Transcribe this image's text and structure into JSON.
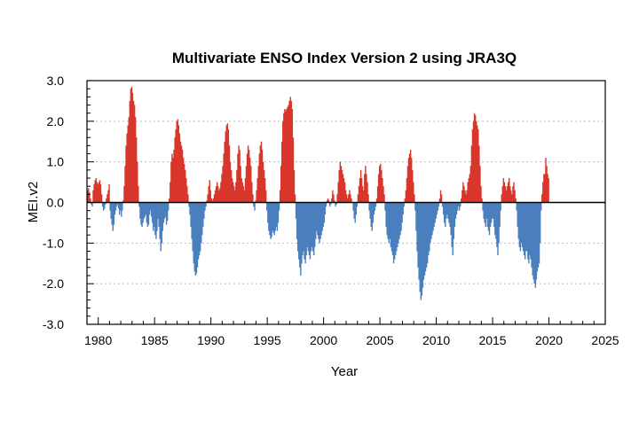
{
  "chart_data": {
    "type": "bar",
    "title": "Multivariate ENSO Index Version 2 using JRA3Q",
    "xlabel": "Year",
    "ylabel": "MEI.v2",
    "xlim": [
      1979,
      2025
    ],
    "ylim": [
      -3.0,
      3.0
    ],
    "x_ticks": [
      1980,
      1985,
      1990,
      1995,
      2000,
      2005,
      2010,
      2015,
      2020,
      2025
    ],
    "x_tick_labels": [
      "1980",
      "1985",
      "1990",
      "1995",
      "2000",
      "2005",
      "2010",
      "2015",
      "2020",
      "2025"
    ],
    "y_ticks": [
      -3.0,
      -2.0,
      -1.0,
      0.0,
      1.0,
      2.0,
      3.0
    ],
    "y_tick_labels": [
      "-3.0",
      "-2.0",
      "-1.0",
      "0.0",
      "1.0",
      "2.0",
      "3.0"
    ],
    "grid": "horizontal dotted",
    "colors": {
      "positive": "#d8362a",
      "negative": "#4a7fbe",
      "zero_line": "#000000",
      "grid": "#bbbbbb"
    },
    "x_start": 1979.0,
    "x_step": 0.08333,
    "values": [
      0.3,
      0.35,
      0.25,
      0.1,
      -0.05,
      -0.1,
      0.3,
      0.45,
      0.55,
      0.6,
      0.5,
      0.45,
      0.5,
      0.55,
      0.45,
      0.2,
      -0.1,
      -0.2,
      -0.15,
      -0.05,
      0.1,
      0.2,
      0.3,
      0.45,
      -0.2,
      -0.4,
      -0.55,
      -0.7,
      -0.55,
      -0.3,
      -0.2,
      -0.1,
      -0.05,
      -0.15,
      -0.3,
      -0.2,
      -0.35,
      -0.2,
      0.05,
      0.4,
      0.9,
      1.4,
      1.7,
      1.9,
      2.1,
      2.5,
      2.8,
      2.85,
      2.7,
      2.5,
      2.4,
      2.1,
      1.6,
      1.0,
      0.4,
      -0.1,
      -0.4,
      -0.55,
      -0.6,
      -0.5,
      -0.4,
      -0.35,
      -0.3,
      -0.5,
      -0.6,
      -0.55,
      -0.3,
      -0.2,
      -0.35,
      -0.5,
      -0.7,
      -0.6,
      -0.8,
      -0.9,
      -0.7,
      -0.4,
      -0.6,
      -0.9,
      -1.2,
      -1.0,
      -0.7,
      -0.5,
      -0.4,
      -0.35,
      -0.55,
      -0.45,
      -0.2,
      0.1,
      0.5,
      1.0,
      1.2,
      1.1,
      1.3,
      1.6,
      1.8,
      2.0,
      2.05,
      1.9,
      1.7,
      1.5,
      1.4,
      1.3,
      1.1,
      0.95,
      0.8,
      0.6,
      0.4,
      0.2,
      -0.1,
      -0.3,
      -0.6,
      -0.9,
      -1.2,
      -1.5,
      -1.7,
      -1.8,
      -1.75,
      -1.6,
      -1.4,
      -1.3,
      -1.2,
      -1.0,
      -0.8,
      -0.6,
      -0.4,
      -0.2,
      -0.1,
      0.05,
      0.2,
      0.4,
      0.55,
      0.3,
      0.1,
      0.05,
      0.1,
      0.2,
      0.3,
      0.4,
      0.5,
      0.4,
      0.3,
      0.35,
      0.5,
      0.7,
      0.9,
      1.2,
      1.5,
      1.75,
      1.9,
      1.95,
      1.8,
      1.4,
      1.0,
      0.8,
      0.6,
      0.5,
      0.4,
      0.3,
      0.5,
      0.8,
      1.2,
      1.4,
      1.3,
      0.9,
      0.6,
      0.5,
      0.4,
      0.3,
      0.6,
      0.9,
      1.2,
      1.4,
      1.3,
      1.1,
      0.9,
      0.5,
      0.2,
      -0.1,
      -0.2,
      0.05,
      0.3,
      0.6,
      0.9,
      1.2,
      1.4,
      1.5,
      1.3,
      1.0,
      0.8,
      0.6,
      0.3,
      -0.2,
      -0.5,
      -0.7,
      -0.8,
      -0.9,
      -0.85,
      -0.7,
      -0.75,
      -0.8,
      -0.7,
      -0.6,
      -0.7,
      -0.5,
      -0.2,
      0.3,
      0.9,
      1.5,
      2.0,
      2.2,
      2.3,
      2.25,
      2.3,
      2.35,
      2.4,
      2.5,
      2.6,
      2.5,
      2.3,
      1.6,
      0.8,
      0.2,
      -0.4,
      -0.9,
      -1.2,
      -1.4,
      -1.6,
      -1.8,
      -1.5,
      -1.3,
      -1.2,
      -1.4,
      -1.5,
      -1.3,
      -1.1,
      -1.2,
      -1.3,
      -1.4,
      -1.2,
      -1.1,
      -1.2,
      -1.3,
      -1.1,
      -0.9,
      -0.7,
      -0.8,
      -0.9,
      -1.0,
      -0.9,
      -0.8,
      -0.7,
      -0.6,
      -0.5,
      -0.3,
      -0.1,
      0.05,
      0.1,
      0.05,
      -0.1,
      -0.05,
      0.1,
      0.3,
      0.2,
      0.05,
      -0.1,
      -0.05,
      0.2,
      0.5,
      0.8,
      1.0,
      0.9,
      0.8,
      0.7,
      0.6,
      0.5,
      0.3,
      0.2,
      0.1,
      0.2,
      0.3,
      0.2,
      0.1,
      0.0,
      -0.2,
      -0.4,
      -0.5,
      -0.3,
      -0.1,
      0.2,
      0.4,
      0.6,
      0.8,
      0.6,
      0.4,
      0.3,
      0.7,
      0.9,
      0.7,
      0.5,
      0.2,
      -0.2,
      -0.4,
      -0.6,
      -0.7,
      -0.5,
      -0.3,
      -0.2,
      -0.1,
      0.1,
      0.4,
      0.7,
      0.9,
      0.95,
      0.8,
      0.6,
      0.4,
      0.2,
      -0.2,
      -0.6,
      -0.8,
      -0.9,
      -1.0,
      -0.9,
      -1.1,
      -1.2,
      -1.3,
      -1.5,
      -1.4,
      -1.3,
      -1.2,
      -1.1,
      -1.0,
      -0.9,
      -0.8,
      -0.7,
      -0.5,
      -0.3,
      -0.1,
      0.1,
      0.3,
      0.6,
      0.9,
      1.1,
      1.2,
      1.3,
      1.1,
      0.8,
      0.5,
      0.2,
      -0.2,
      -0.7,
      -1.2,
      -1.6,
      -1.9,
      -2.2,
      -2.4,
      -2.3,
      -2.1,
      -1.9,
      -1.8,
      -1.7,
      -1.6,
      -1.5,
      -1.3,
      -1.2,
      -1.0,
      -0.9,
      -0.8,
      -0.7,
      -0.6,
      -0.5,
      -0.4,
      -0.3,
      -0.2,
      -0.1,
      0.1,
      0.3,
      0.2,
      -0.1,
      -0.3,
      -0.5,
      -0.6,
      -0.4,
      -0.3,
      -0.4,
      -0.5,
      -0.6,
      -0.8,
      -1.1,
      -1.3,
      -0.9,
      -0.6,
      -0.4,
      -0.3,
      -0.2,
      -0.1,
      -0.2,
      -0.1,
      0.1,
      0.3,
      0.5,
      0.4,
      0.3,
      0.2,
      0.3,
      0.5,
      0.6,
      0.7,
      0.9,
      1.4,
      1.8,
      2.0,
      2.2,
      2.15,
      2.0,
      1.9,
      1.8,
      1.4,
      0.9,
      0.4,
      0.1,
      -0.2,
      -0.4,
      -0.5,
      -0.6,
      -0.4,
      -0.6,
      -0.7,
      -0.8,
      -0.6,
      -0.5,
      -0.4,
      -0.4,
      -0.6,
      -0.8,
      -0.9,
      -1.1,
      -1.3,
      -1.0,
      -0.6,
      -0.2,
      0.2,
      0.4,
      0.6,
      0.5,
      0.4,
      0.3,
      0.4,
      0.5,
      0.6,
      0.4,
      0.3,
      0.2,
      0.4,
      0.5,
      0.3,
      0.1,
      -0.2,
      -0.6,
      -0.9,
      -1.1,
      -1.2,
      -1.0,
      -1.1,
      -1.2,
      -1.3,
      -1.4,
      -1.2,
      -1.2,
      -1.4,
      -1.5,
      -1.3,
      -1.4,
      -1.6,
      -1.8,
      -1.9,
      -2.0,
      -2.1,
      -1.9,
      -1.7,
      -1.6,
      -1.5,
      -1.0,
      -0.2,
      0.2,
      0.5,
      0.7,
      0.7,
      1.1,
      0.9,
      0.7,
      0.6
    ]
  }
}
